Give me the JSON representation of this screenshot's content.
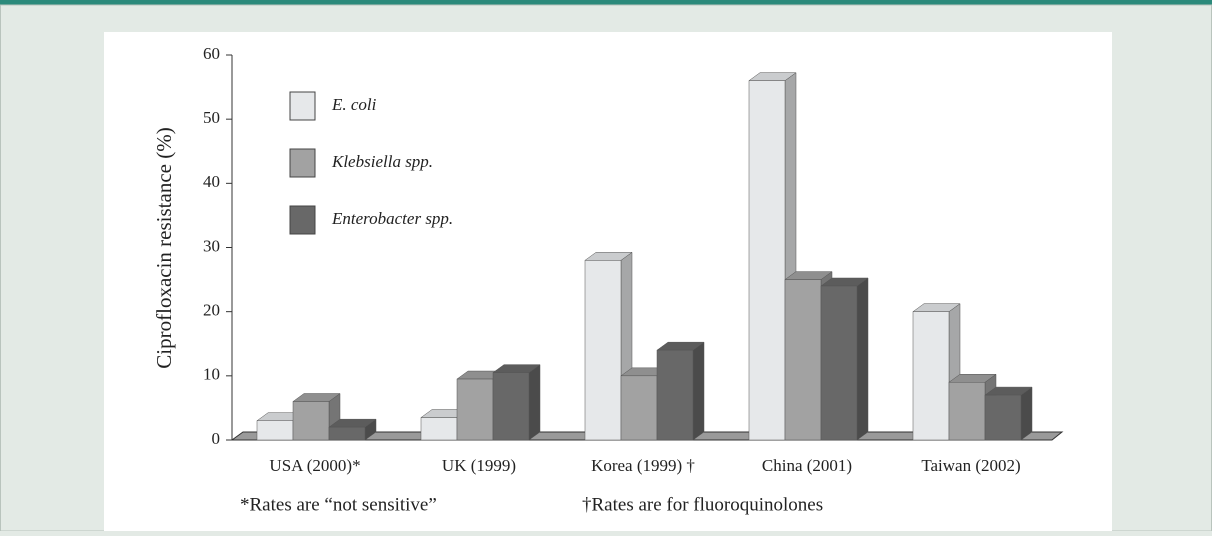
{
  "chart_data": {
    "type": "bar",
    "ylabel": "Ciprofloxacin resistance (%)",
    "categories": [
      "USA (2000)*",
      "UK (1999)",
      "Korea (1999) †",
      "China (2001)",
      "Taiwan (2002)"
    ],
    "series": [
      {
        "name": "E. coli",
        "color": "#e6e8ea",
        "values": [
          3,
          3.5,
          28,
          56,
          20
        ]
      },
      {
        "name": "Klebsiella spp.",
        "color": "#a2a2a2",
        "values": [
          6,
          9.5,
          10,
          25,
          9
        ]
      },
      {
        "name": "Enterobacter spp.",
        "color": "#686868",
        "values": [
          2,
          10.5,
          14,
          24,
          7
        ]
      }
    ],
    "ylim": [
      0,
      60
    ],
    "yticks": [
      0,
      10,
      20,
      30,
      40,
      50,
      60
    ],
    "footnotes": [
      "*Rates are “not sensitive”",
      "†Rates are for fluoroquinolones"
    ]
  }
}
